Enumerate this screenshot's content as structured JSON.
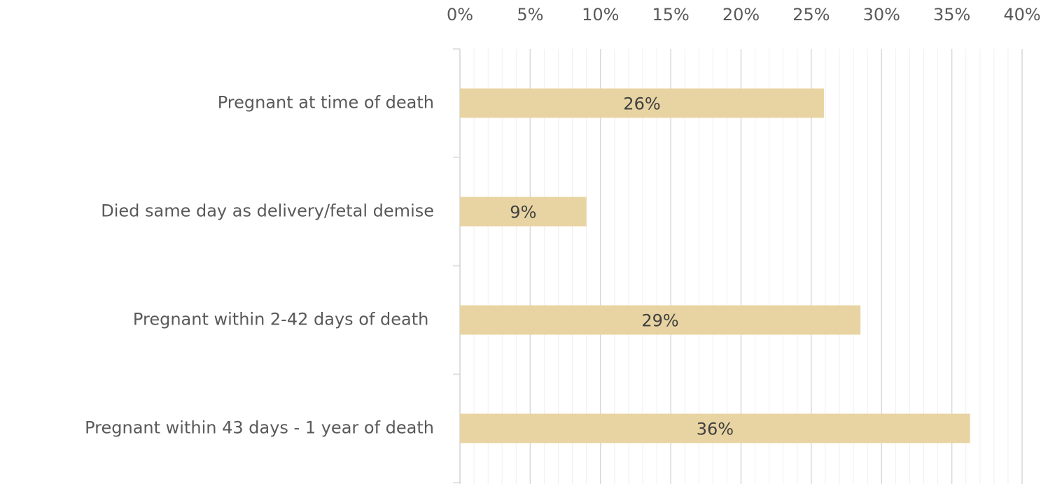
{
  "chart_data": {
    "type": "bar",
    "orientation": "horizontal",
    "categories": [
      "Pregnant at time of death",
      "Died same day as delivery/fetal demise",
      "Pregnant within 2-42 days of death ",
      "Pregnant within 43 days - 1 year of death"
    ],
    "values": [
      25.9,
      9.0,
      28.5,
      36.3
    ],
    "value_labels": [
      "26%",
      "9%",
      "29%",
      "36%"
    ],
    "color": "#e8d4a2",
    "xlim": [
      0,
      40
    ],
    "xticks": [
      {
        "value": 0,
        "label": "0%"
      },
      {
        "value": 5,
        "label": "5%"
      },
      {
        "value": 10,
        "label": "10%"
      },
      {
        "value": 15,
        "label": "15%"
      },
      {
        "value": 20,
        "label": "20%"
      },
      {
        "value": 25,
        "label": "25%"
      },
      {
        "value": 30,
        "label": "30%"
      },
      {
        "value": 35,
        "label": "35%"
      },
      {
        "value": 40,
        "label": "40%"
      }
    ],
    "minor_grid_step": 1,
    "grid": true
  }
}
